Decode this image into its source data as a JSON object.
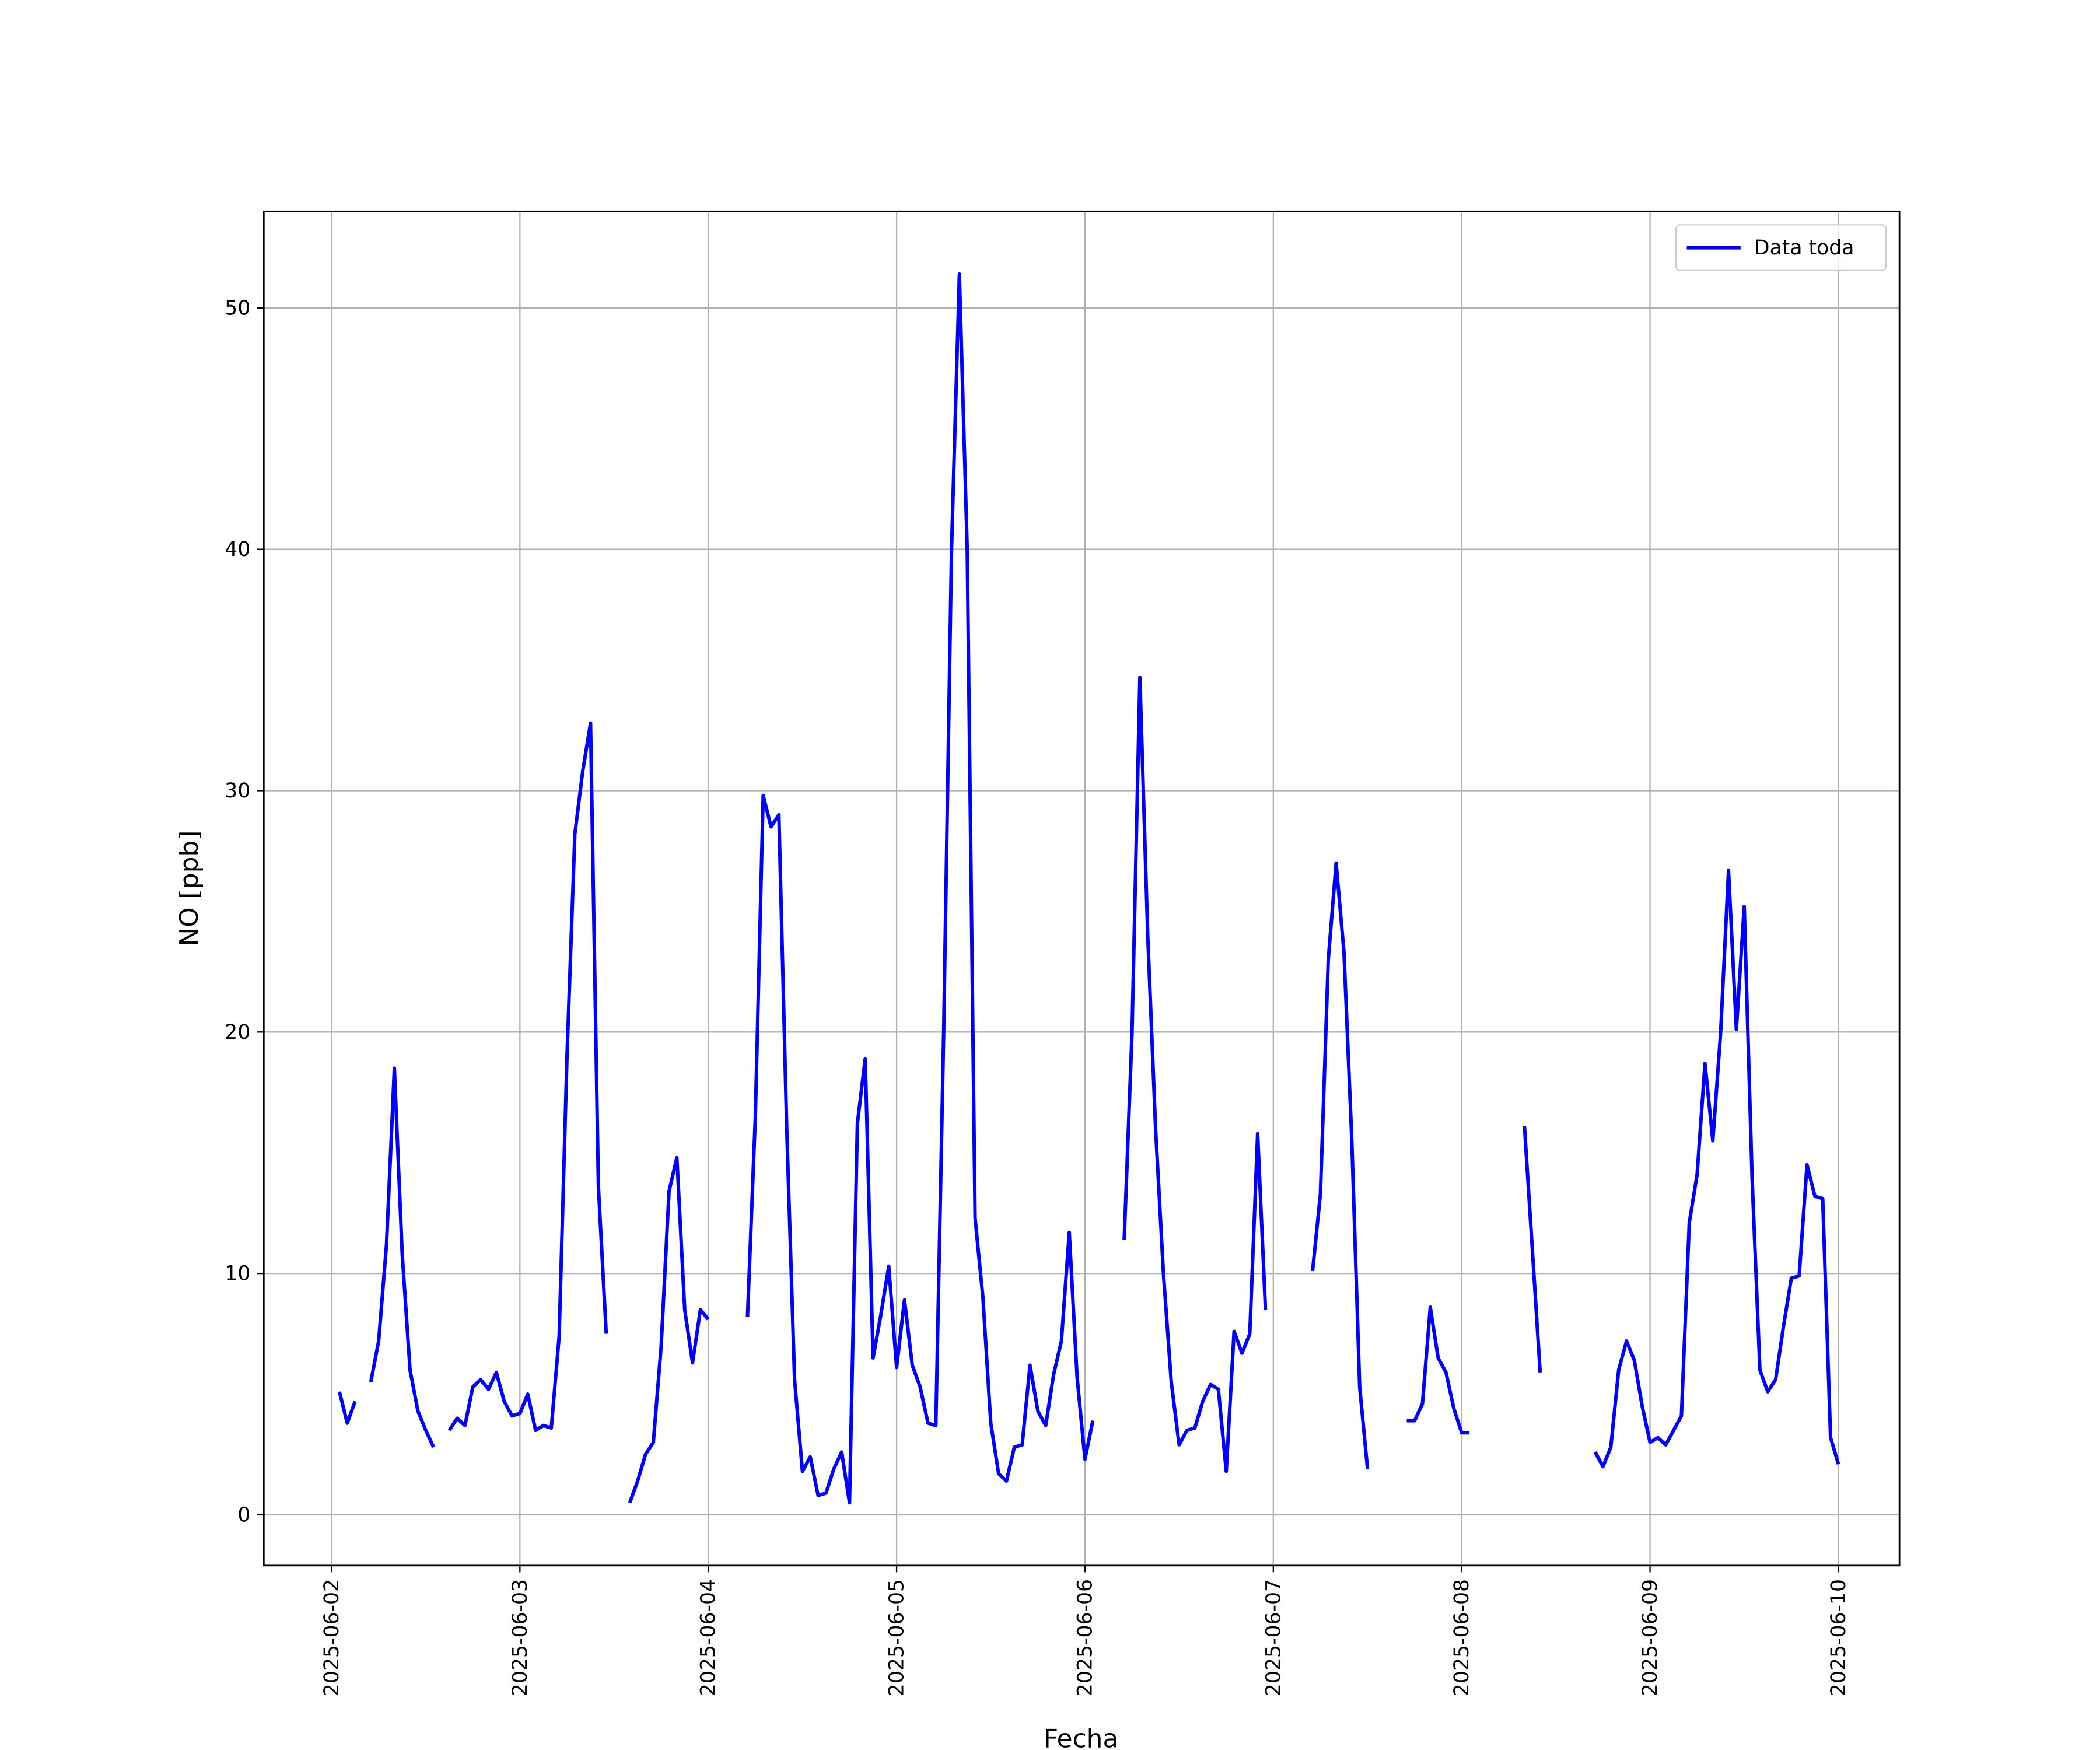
{
  "chart_data": {
    "type": "line",
    "xlabel": "Fecha",
    "ylabel": "NO [ppb]",
    "x": [
      "2025-06-02 01:00",
      "2025-06-02 02:00",
      "2025-06-02 03:00",
      "2025-06-02 04:00",
      "2025-06-02 05:00",
      "2025-06-02 06:00",
      "2025-06-02 07:00",
      "2025-06-02 08:00",
      "2025-06-02 09:00",
      "2025-06-02 10:00",
      "2025-06-02 11:00",
      "2025-06-02 12:00",
      "2025-06-02 13:00",
      "2025-06-02 14:00",
      "2025-06-02 15:00",
      "2025-06-02 16:00",
      "2025-06-02 17:00",
      "2025-06-02 18:00",
      "2025-06-02 19:00",
      "2025-06-02 20:00",
      "2025-06-02 21:00",
      "2025-06-02 22:00",
      "2025-06-02 23:00",
      "2025-06-03 00:00",
      "2025-06-03 01:00",
      "2025-06-03 02:00",
      "2025-06-03 03:00",
      "2025-06-03 04:00",
      "2025-06-03 05:00",
      "2025-06-03 06:00",
      "2025-06-03 07:00",
      "2025-06-03 08:00",
      "2025-06-03 09:00",
      "2025-06-03 10:00",
      "2025-06-03 11:00",
      "2025-06-03 12:00",
      "2025-06-03 13:00",
      "2025-06-03 14:00",
      "2025-06-03 15:00",
      "2025-06-03 16:00",
      "2025-06-03 17:00",
      "2025-06-03 18:00",
      "2025-06-03 19:00",
      "2025-06-03 20:00",
      "2025-06-03 21:00",
      "2025-06-03 22:00",
      "2025-06-03 23:00",
      "2025-06-04 00:00",
      "2025-06-04 01:00",
      "2025-06-04 02:00",
      "2025-06-04 03:00",
      "2025-06-04 04:00",
      "2025-06-04 05:00",
      "2025-06-04 06:00",
      "2025-06-04 07:00",
      "2025-06-04 08:00",
      "2025-06-04 09:00",
      "2025-06-04 10:00",
      "2025-06-04 11:00",
      "2025-06-04 12:00",
      "2025-06-04 13:00",
      "2025-06-04 14:00",
      "2025-06-04 15:00",
      "2025-06-04 16:00",
      "2025-06-04 17:00",
      "2025-06-04 18:00",
      "2025-06-04 19:00",
      "2025-06-04 20:00",
      "2025-06-04 21:00",
      "2025-06-04 22:00",
      "2025-06-04 23:00",
      "2025-06-05 00:00",
      "2025-06-05 01:00",
      "2025-06-05 02:00",
      "2025-06-05 03:00",
      "2025-06-05 04:00",
      "2025-06-05 05:00",
      "2025-06-05 06:00",
      "2025-06-05 07:00",
      "2025-06-05 08:00",
      "2025-06-05 09:00",
      "2025-06-05 10:00",
      "2025-06-05 11:00",
      "2025-06-05 12:00",
      "2025-06-05 13:00",
      "2025-06-05 14:00",
      "2025-06-05 15:00",
      "2025-06-05 16:00",
      "2025-06-05 17:00",
      "2025-06-05 18:00",
      "2025-06-05 19:00",
      "2025-06-05 20:00",
      "2025-06-05 21:00",
      "2025-06-05 22:00",
      "2025-06-05 23:00",
      "2025-06-06 00:00",
      "2025-06-06 01:00",
      "2025-06-06 02:00",
      "2025-06-06 03:00",
      "2025-06-06 04:00",
      "2025-06-06 05:00",
      "2025-06-06 06:00",
      "2025-06-06 07:00",
      "2025-06-06 08:00",
      "2025-06-06 09:00",
      "2025-06-06 10:00",
      "2025-06-06 11:00",
      "2025-06-06 12:00",
      "2025-06-06 13:00",
      "2025-06-06 14:00",
      "2025-06-06 15:00",
      "2025-06-06 16:00",
      "2025-06-06 17:00",
      "2025-06-06 18:00",
      "2025-06-06 19:00",
      "2025-06-06 20:00",
      "2025-06-06 21:00",
      "2025-06-06 22:00",
      "2025-06-06 23:00",
      "2025-06-07 00:00",
      "2025-06-07 01:00",
      "2025-06-07 02:00",
      "2025-06-07 03:00",
      "2025-06-07 04:00",
      "2025-06-07 05:00",
      "2025-06-07 06:00",
      "2025-06-07 07:00",
      "2025-06-07 08:00",
      "2025-06-07 09:00",
      "2025-06-07 10:00",
      "2025-06-07 11:00",
      "2025-06-07 12:00",
      "2025-06-07 13:00",
      "2025-06-07 14:00",
      "2025-06-07 15:00",
      "2025-06-07 16:00",
      "2025-06-07 17:00",
      "2025-06-07 18:00",
      "2025-06-07 19:00",
      "2025-06-07 20:00",
      "2025-06-07 21:00",
      "2025-06-07 22:00",
      "2025-06-07 23:00",
      "2025-06-08 00:00",
      "2025-06-08 01:00",
      "2025-06-08 02:00",
      "2025-06-08 03:00",
      "2025-06-08 04:00",
      "2025-06-08 05:00",
      "2025-06-08 06:00",
      "2025-06-08 07:00",
      "2025-06-08 08:00",
      "2025-06-08 09:00",
      "2025-06-08 10:00",
      "2025-06-08 11:00",
      "2025-06-08 12:00",
      "2025-06-08 13:00",
      "2025-06-08 14:00",
      "2025-06-08 15:00",
      "2025-06-08 16:00",
      "2025-06-08 17:00",
      "2025-06-08 18:00",
      "2025-06-08 19:00",
      "2025-06-08 20:00",
      "2025-06-08 21:00",
      "2025-06-08 22:00",
      "2025-06-08 23:00",
      "2025-06-09 00:00",
      "2025-06-09 01:00",
      "2025-06-09 02:00",
      "2025-06-09 03:00",
      "2025-06-09 04:00",
      "2025-06-09 05:00",
      "2025-06-09 06:00",
      "2025-06-09 07:00",
      "2025-06-09 08:00",
      "2025-06-09 09:00",
      "2025-06-09 10:00",
      "2025-06-09 11:00",
      "2025-06-09 12:00",
      "2025-06-09 13:00",
      "2025-06-09 14:00",
      "2025-06-09 15:00",
      "2025-06-09 16:00",
      "2025-06-09 17:00",
      "2025-06-09 18:00",
      "2025-06-09 19:00",
      "2025-06-09 20:00",
      "2025-06-09 21:00",
      "2025-06-09 22:00",
      "2025-06-09 23:00",
      "2025-06-10 00:00"
    ],
    "series": [
      {
        "name": "Data toda",
        "color": "#0000ff",
        "values": [
          5.1,
          3.8,
          4.7,
          null,
          5.5,
          7.2,
          11.2,
          18.5,
          10.8,
          6.0,
          4.3,
          3.5,
          2.8,
          null,
          3.5,
          4.0,
          3.7,
          5.3,
          5.6,
          5.2,
          5.9,
          4.7,
          4.1,
          4.2,
          5.0,
          3.5,
          3.7,
          3.6,
          7.4,
          19,
          28.2,
          30.8,
          32.8,
          13.6,
          7.5,
          null,
          null,
          0.5,
          1.4,
          2.5,
          3.0,
          7.0,
          13.4,
          14.8,
          8.5,
          6.3,
          8.5,
          8.1,
          null,
          null,
          null,
          null,
          8.2,
          16.5,
          29.8,
          28.5,
          29.0,
          16,
          5.6,
          1.8,
          2.4,
          0.8,
          0.9,
          1.9,
          2.6,
          0.5,
          16.2,
          18.9,
          6.5,
          8.3,
          10.3,
          6.1,
          8.9,
          6.2,
          5.3,
          3.8,
          3.7,
          20,
          40,
          51.4,
          40,
          12.3,
          9.0,
          3.8,
          1.7,
          1.4,
          2.8,
          2.9,
          6.2,
          4.3,
          3.7,
          5.8,
          7.2,
          11.7,
          5.7,
          2.3,
          3.9,
          null,
          null,
          null,
          11.4,
          20,
          34.7,
          24,
          16,
          10,
          5.5,
          2.9,
          3.5,
          3.6,
          4.7,
          5.4,
          5.2,
          1.8,
          7.6,
          6.7,
          7.5,
          15.8,
          8.5,
          null,
          null,
          null,
          null,
          null,
          10.1,
          13.3,
          23,
          27,
          23.3,
          15.5,
          5.3,
          1.9,
          null,
          null,
          null,
          null,
          3.9,
          3.9,
          4.6,
          8.6,
          6.5,
          5.9,
          4.4,
          3.4,
          3.4,
          null,
          null,
          null,
          null,
          null,
          null,
          16.1,
          11,
          5.9,
          null,
          null,
          null,
          null,
          null,
          null,
          2.6,
          2.0,
          2.8,
          6.0,
          7.2,
          6.4,
          4.5,
          3.0,
          3.2,
          2.9,
          3.5,
          4.1,
          12.1,
          14.1,
          18.7,
          15.5,
          20,
          26.7,
          20.1,
          25.2,
          14,
          6.0,
          5.1,
          5.6,
          7.8,
          9.8,
          9.9,
          14.5,
          13.2,
          13.1,
          3.2,
          2.1
        ]
      }
    ],
    "xlim": [
      "2025-06-01 15:22",
      "2025-06-10 07:47"
    ],
    "xticks": [
      "2025-06-02",
      "2025-06-03",
      "2025-06-04",
      "2025-06-05",
      "2025-06-06",
      "2025-06-07",
      "2025-06-08",
      "2025-06-09",
      "2025-06-10"
    ],
    "ylim": [
      -2.1,
      54.0
    ],
    "yticks": [
      0,
      10,
      20,
      30,
      40,
      50
    ],
    "grid": true,
    "legend": "upper right"
  }
}
